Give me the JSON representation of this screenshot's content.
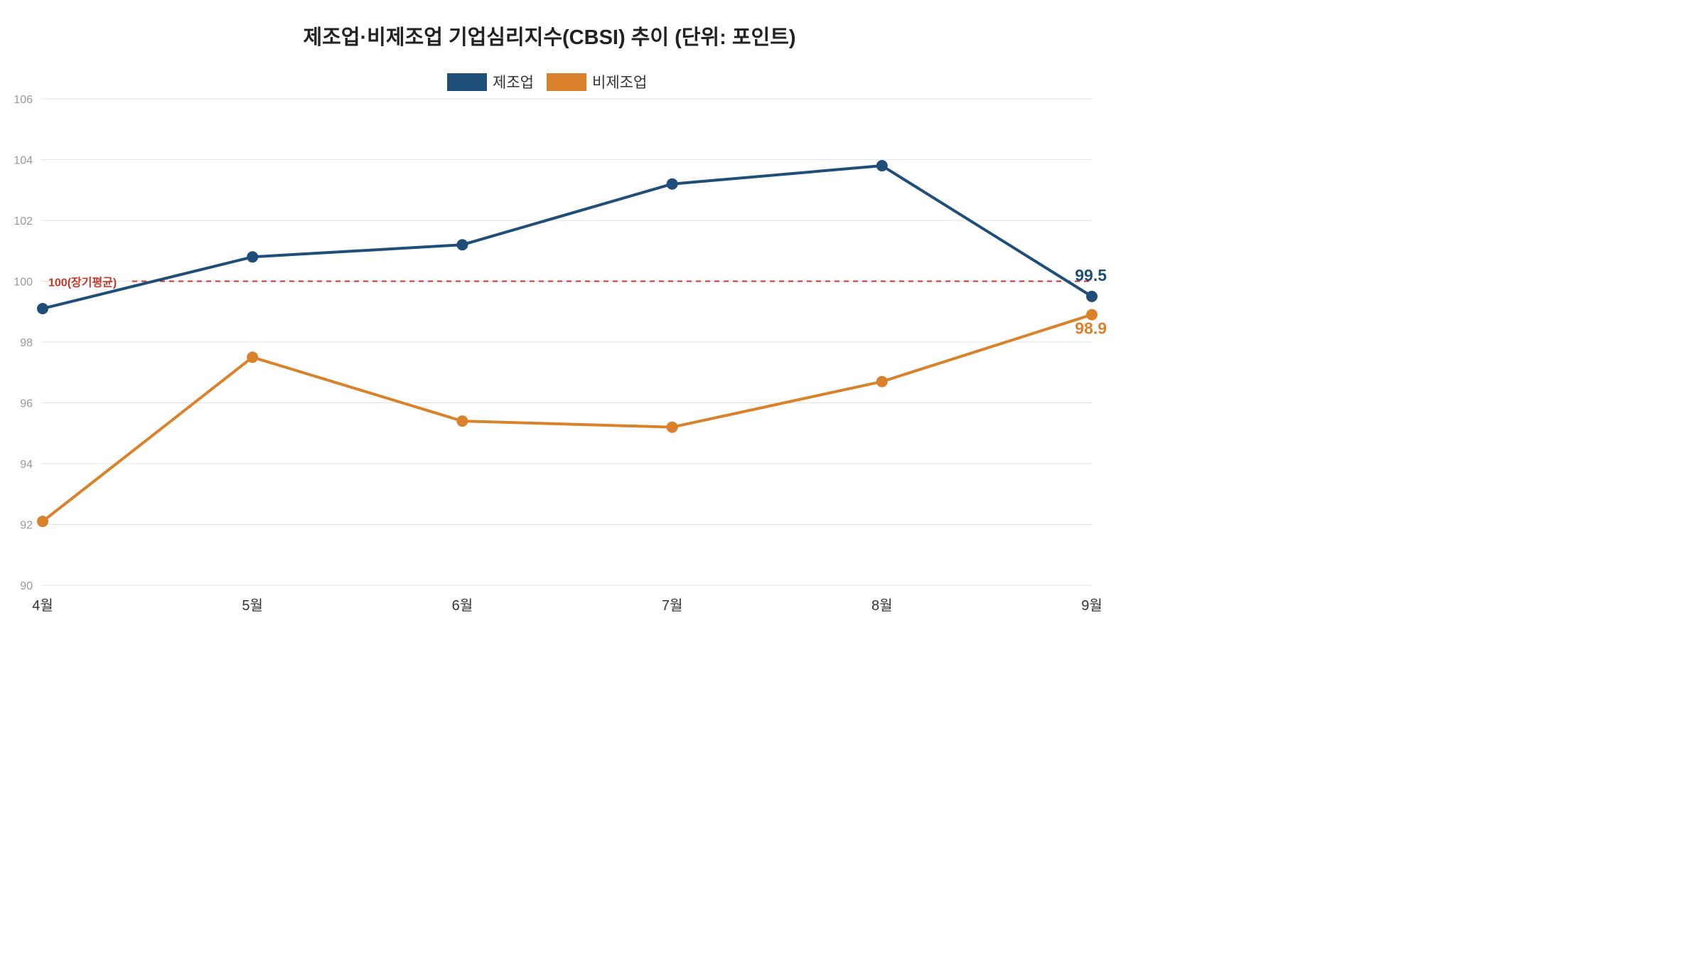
{
  "chart_data": {
    "type": "line",
    "title": "제조업·비제조업 기업심리지수(CBSI) 추이 (단위: 포인트)",
    "xlabel": "",
    "ylabel": "",
    "categories": [
      "4월",
      "5월",
      "6월",
      "7월",
      "8월",
      "9월"
    ],
    "ylim": [
      90,
      106
    ],
    "yticks": [
      90,
      92,
      94,
      96,
      98,
      100,
      102,
      104,
      106
    ],
    "grid": true,
    "legend_position": "top-center",
    "series": [
      {
        "name": "제조업",
        "color": "#1f4e79",
        "values": [
          99.1,
          100.8,
          101.2,
          103.2,
          103.8,
          99.5
        ],
        "end_label": "99.5"
      },
      {
        "name": "비제조업",
        "color": "#d9822b",
        "values": [
          92.1,
          97.5,
          95.4,
          95.2,
          96.7,
          98.9
        ],
        "end_label": "98.9"
      }
    ],
    "reference_line": {
      "value": 100,
      "label": "100(장기평균)",
      "color": "#c0392b"
    }
  }
}
